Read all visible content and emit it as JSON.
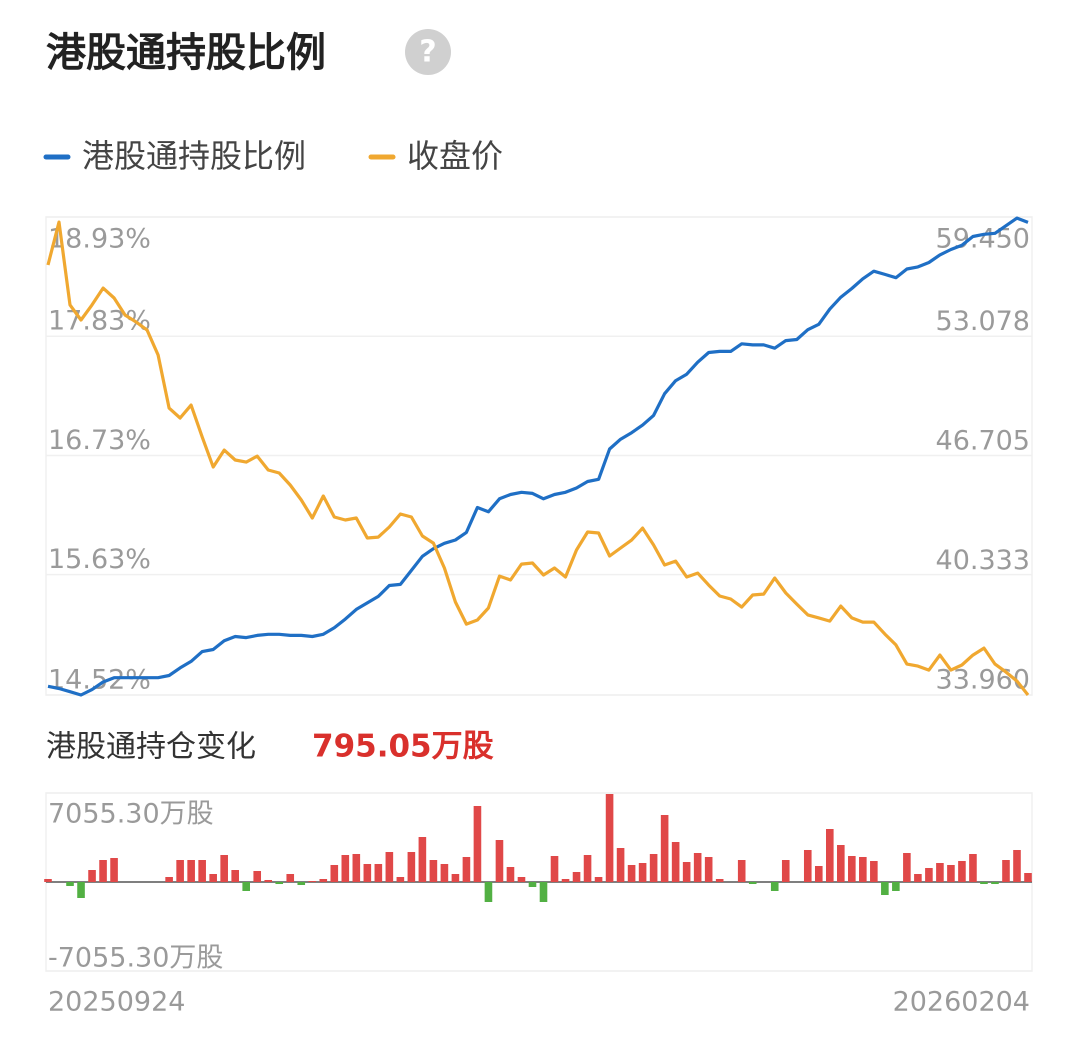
{
  "chart_data": [
    {
      "type": "line",
      "title": "港股通持股比例",
      "grid": true,
      "ylim": [
        14.52,
        18.93
      ],
      "yticks": [
        {
          "value": 18.93,
          "label": "18.93%"
        },
        {
          "value": 17.83,
          "label": "17.83%"
        },
        {
          "value": 16.73,
          "label": "16.73%"
        },
        {
          "value": 15.63,
          "label": "15.63%"
        },
        {
          "value": 14.52,
          "label": "14.52%"
        }
      ],
      "y2lim": [
        33.96,
        59.45
      ],
      "y2ticks": [
        {
          "value": 59.45,
          "label": "59.450"
        },
        53.078,
        46.705,
        40.333,
        {
          "value": 33.96,
          "label": "33.960"
        }
      ],
      "series": [
        {
          "name": "港股通持股比例",
          "color": "#1f6fc5",
          "values": [
            14.6,
            14.58,
            14.55,
            14.52,
            14.57,
            14.64,
            14.68,
            14.68,
            14.68,
            14.68,
            14.68,
            14.7,
            14.77,
            14.83,
            14.92,
            14.94,
            15.02,
            15.06,
            15.05,
            15.07,
            15.08,
            15.08,
            15.07,
            15.07,
            15.06,
            15.08,
            15.14,
            15.22,
            15.31,
            15.37,
            15.43,
            15.53,
            15.54,
            15.67,
            15.8,
            15.87,
            15.92,
            15.95,
            16.02,
            16.25,
            16.21,
            16.33,
            16.37,
            16.39,
            16.38,
            16.33,
            16.37,
            16.39,
            16.43,
            16.49,
            16.51,
            16.79,
            16.88,
            16.94,
            17.01,
            17.1,
            17.3,
            17.42,
            17.48,
            17.59,
            17.68,
            17.69,
            17.69,
            17.76,
            17.75,
            17.75,
            17.72,
            17.79,
            17.8,
            17.89,
            17.94,
            18.08,
            18.19,
            18.27,
            18.36,
            18.43,
            18.4,
            18.37,
            18.45,
            18.47,
            18.51,
            18.58,
            18.63,
            18.67,
            18.75,
            18.77,
            18.78,
            18.85,
            18.92,
            18.88
          ]
        },
        {
          "name": "收盘价",
          "color": "#f0a830",
          "axis": "y2",
          "values": [
            56.89,
            59.18,
            54.76,
            53.96,
            54.76,
            55.66,
            55.13,
            54.22,
            53.85,
            53.42,
            52.09,
            49.26,
            48.73,
            49.42,
            47.72,
            46.12,
            47.02,
            46.49,
            46.38,
            46.7,
            45.96,
            45.8,
            45.16,
            44.36,
            43.4,
            44.57,
            43.45,
            43.29,
            43.4,
            42.33,
            42.38,
            42.92,
            43.61,
            43.45,
            42.44,
            42.06,
            40.73,
            38.92,
            37.74,
            37.96,
            38.6,
            40.3,
            40.09,
            40.94,
            41.0,
            40.36,
            40.73,
            40.25,
            41.69,
            42.65,
            42.6,
            41.37,
            41.8,
            42.22,
            42.86,
            41.96,
            40.89,
            41.1,
            40.25,
            40.46,
            39.82,
            39.24,
            39.08,
            38.65,
            39.29,
            39.34,
            40.2,
            39.4,
            38.81,
            38.23,
            38.07,
            37.9,
            38.7,
            38.07,
            37.85,
            37.85,
            37.21,
            36.63,
            35.61,
            35.5,
            35.29,
            36.09,
            35.29,
            35.56,
            36.09,
            36.46,
            35.61,
            35.18,
            34.7,
            33.96
          ]
        }
      ]
    },
    {
      "type": "bar",
      "title": "港股通持仓变化",
      "annotation": "795.05万股",
      "ylim": [
        -7055.3,
        7055.3
      ],
      "yticks": [
        {
          "value": 7055.3,
          "label": "7055.30万股"
        },
        {
          "value": -7055.3,
          "label": "-7055.30万股"
        }
      ],
      "color": "#e04848",
      "negative_color": "#52b043",
      "categories": [
        "20250924",
        null,
        null,
        null,
        null,
        null,
        null,
        null,
        null,
        null,
        null,
        null,
        null,
        null,
        null,
        null,
        null,
        null,
        null,
        null,
        null,
        null,
        null,
        null,
        null,
        null,
        null,
        null,
        null,
        null,
        null,
        null,
        null,
        null,
        null,
        null,
        null,
        null,
        null,
        null,
        null,
        null,
        null,
        null,
        null,
        null,
        null,
        null,
        null,
        null,
        null,
        null,
        null,
        null,
        null,
        null,
        null,
        null,
        null,
        null,
        null,
        null,
        null,
        null,
        null,
        null,
        null,
        null,
        null,
        null,
        null,
        null,
        null,
        null,
        null,
        null,
        null,
        null,
        null,
        null,
        null,
        null,
        null,
        null,
        null,
        null,
        null,
        null,
        null,
        "20260204"
      ],
      "values": [
        238,
        0,
        -317,
        -1268,
        951,
        1744,
        1902,
        0,
        0,
        0,
        0,
        396,
        1744,
        1744,
        1744,
        634,
        2140,
        951,
        -713,
        872,
        159,
        -159,
        634,
        -238,
        79,
        238,
        1348,
        2140,
        2220,
        1427,
        1427,
        2378,
        396,
        2378,
        3567,
        1744,
        1427,
        634,
        1982,
        6025,
        -1585,
        3329,
        1189,
        396,
        -396,
        -1585,
        2061,
        238,
        793,
        2140,
        396,
        6976,
        2695,
        1348,
        1506,
        2220,
        5311,
        3171,
        1585,
        2299,
        1982,
        238,
        0,
        1744,
        -159,
        0,
        -713,
        1744,
        0,
        2537,
        1268,
        4201,
        2933,
        2061,
        1982,
        1665,
        -1031,
        -713,
        2299,
        634,
        1110,
        1506,
        1348,
        1665,
        2220,
        -159,
        -159,
        1744,
        2537,
        713
      ]
    }
  ]
}
